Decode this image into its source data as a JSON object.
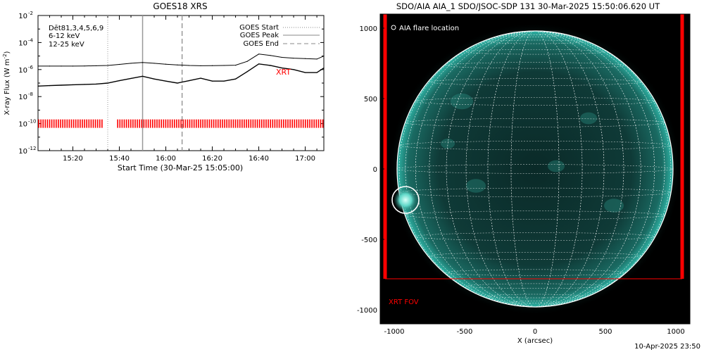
{
  "timestamp": "10-Apr-2025 23:50",
  "chart_data": [
    {
      "type": "line",
      "title": "GOES18 XRS",
      "xlabel": "Start Time (30-Mar-25 15:05:00)",
      "ylabel": "X-ray Flux (W m",
      "ylabel_exp": "-2",
      "ylabel_close": ")",
      "xlim": [
        "15:05",
        "17:08"
      ],
      "xticks": [
        "15:20",
        "15:40",
        "16:00",
        "16:20",
        "16:40",
        "17:00"
      ],
      "ylog": true,
      "ylim": [
        1e-12,
        0.01
      ],
      "yticks": [
        {
          "base": "10",
          "exp": "-2",
          "value": 0.01
        },
        {
          "base": "10",
          "exp": "-4",
          "value": 0.0001
        },
        {
          "base": "10",
          "exp": "-6",
          "value": 1e-06
        },
        {
          "base": "10",
          "exp": "-8",
          "value": 1e-08
        },
        {
          "base": "10",
          "exp": "-10",
          "value": 1e-10
        },
        {
          "base": "10",
          "exp": "-12",
          "value": 1e-12
        }
      ],
      "left_legend": [
        {
          "label": "Dēt81,3,4,5,6,9",
          "color": "#000000"
        },
        {
          "label": "6-12 keV",
          "color": "#cc00cc"
        },
        {
          "label": "12-25 keV",
          "color": "#00cc00"
        }
      ],
      "right_legend": [
        {
          "label": "GOES Start",
          "style": "dotted"
        },
        {
          "label": "GOES Peak",
          "style": "solid"
        },
        {
          "label": "GOES End",
          "style": "dashed"
        }
      ],
      "annotation": "XRT",
      "annotation_color": "#ff0000",
      "events": {
        "start": "15:35",
        "peak": "15:50",
        "end": "16:07"
      },
      "series": [
        {
          "x": [
            "15:05",
            "15:10",
            "15:15",
            "15:20",
            "15:25",
            "15:30",
            "15:35",
            "15:40",
            "15:45",
            "15:50",
            "15:55",
            "16:00",
            "16:05",
            "16:10",
            "16:15",
            "16:20",
            "16:25",
            "16:30",
            "16:35",
            "16:40",
            "16:45",
            "16:50",
            "16:55",
            "17:00",
            "17:05",
            "17:08"
          ],
          "values": [
            1.8e-06,
            1.8e-06,
            1.8e-06,
            1.8e-06,
            1.85e-06,
            1.9e-06,
            2e-06,
            2.4e-06,
            2.9e-06,
            3.3e-06,
            2.9e-06,
            2.5e-06,
            2.2e-06,
            2e-06,
            1.9e-06,
            1.95e-06,
            2e-06,
            2.1e-06,
            4e-06,
            1.4e-05,
            1.1e-05,
            8e-06,
            7e-06,
            6.5e-06,
            6e-06,
            1e-05
          ]
        },
        {
          "x": [
            "15:05",
            "15:10",
            "15:15",
            "15:20",
            "15:25",
            "15:30",
            "15:35",
            "15:40",
            "15:45",
            "15:50",
            "15:55",
            "16:00",
            "16:05",
            "16:10",
            "16:15",
            "16:20",
            "16:25",
            "16:30",
            "16:35",
            "16:40",
            "16:45",
            "16:50",
            "16:55",
            "17:00",
            "17:05",
            "17:08"
          ],
          "values": [
            6e-08,
            6.5e-08,
            7e-08,
            7.5e-08,
            8e-08,
            8.5e-08,
            1e-07,
            1.5e-07,
            2.2e-07,
            3.2e-07,
            2e-07,
            1.4e-07,
            1e-07,
            1.5e-07,
            2.3e-07,
            1.4e-07,
            1.4e-07,
            2e-07,
            7e-07,
            2.6e-06,
            2e-06,
            1.3e-06,
            1e-06,
            6e-07,
            6e-07,
            1.3e-06
          ]
        }
      ],
      "xrt_ticks": {
        "level": 1e-10,
        "color": "#ff0000",
        "intervals": [
          [
            "15:05",
            "15:33"
          ],
          [
            "15:39",
            "17:08"
          ]
        ]
      }
    },
    {
      "type": "heatmap",
      "title": "SDO/AIA AIA_1 SDO/JSOC-SDP 131 30-Mar-2025 15:50:06.620 UT",
      "xlabel": "X (arcsec)",
      "ylabel": "",
      "xlim": [
        -1100,
        1100
      ],
      "ylim": [
        -1100,
        1100
      ],
      "xticks": [
        -1000,
        -500,
        0,
        500,
        1000
      ],
      "yticks": [
        -1000,
        -500,
        0,
        500,
        1000
      ],
      "solar_radius_arcsec": 980,
      "grid": true,
      "legend": "AIA flare location",
      "flare_location": {
        "x": -920,
        "y": -220,
        "radius": 95
      },
      "xrt_fov": {
        "label": "XRT FOV",
        "x": [
          -1065,
          1045
        ],
        "y": [
          -780,
          1100
        ],
        "color": "#ff0000"
      }
    }
  ]
}
